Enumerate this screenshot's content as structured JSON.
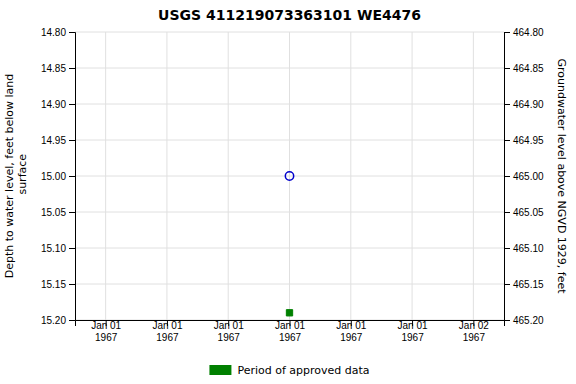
{
  "chart_data": {
    "type": "scatter",
    "title": "USGS 411219073363101 WE4476",
    "y_label": "Depth to water level, feet below land\n surface",
    "y2_label": "Groundwater level above NGVD 1929, feet",
    "categories": [
      "Jan 01\n1967",
      "Jan 01\n1967",
      "Jan 01\n1967",
      "Jan 01\n1967",
      "Jan 01\n1967",
      "Jan 01\n1967",
      "Jan 02\n1967"
    ],
    "series": [
      {
        "color": "#0000cc",
        "marker": "circle-open",
        "values": [
          null,
          null,
          null,
          15.0,
          null,
          null,
          null
        ]
      },
      {
        "name": "Period of approved data",
        "color": "#008000",
        "marker": "square",
        "values": [
          null,
          null,
          null,
          15.19,
          null,
          null,
          null
        ]
      }
    ],
    "ylim": [
      15.2,
      14.8
    ],
    "yticks": [
      {
        "value": 14.8,
        "label": "14.80"
      },
      14.85,
      {
        "value": 14.9,
        "label": "14.90"
      },
      14.95,
      {
        "value": 15.0,
        "label": "15.00"
      },
      15.05,
      {
        "value": 15.1,
        "label": "15.10"
      },
      15.15,
      {
        "value": 15.2,
        "label": "15.20"
      }
    ],
    "y2lim": [
      465.2,
      464.8
    ],
    "y2ticks": [
      {
        "value": 465.2,
        "label": "465.20"
      },
      465.15,
      {
        "value": 465.1,
        "label": "465.10"
      },
      465.05,
      {
        "value": 465.0,
        "label": "465.00"
      },
      464.95,
      {
        "value": 464.9,
        "label": "464.90"
      },
      464.85,
      {
        "value": 464.8,
        "label": "464.80"
      }
    ],
    "grid": true,
    "legend": "bottom"
  }
}
